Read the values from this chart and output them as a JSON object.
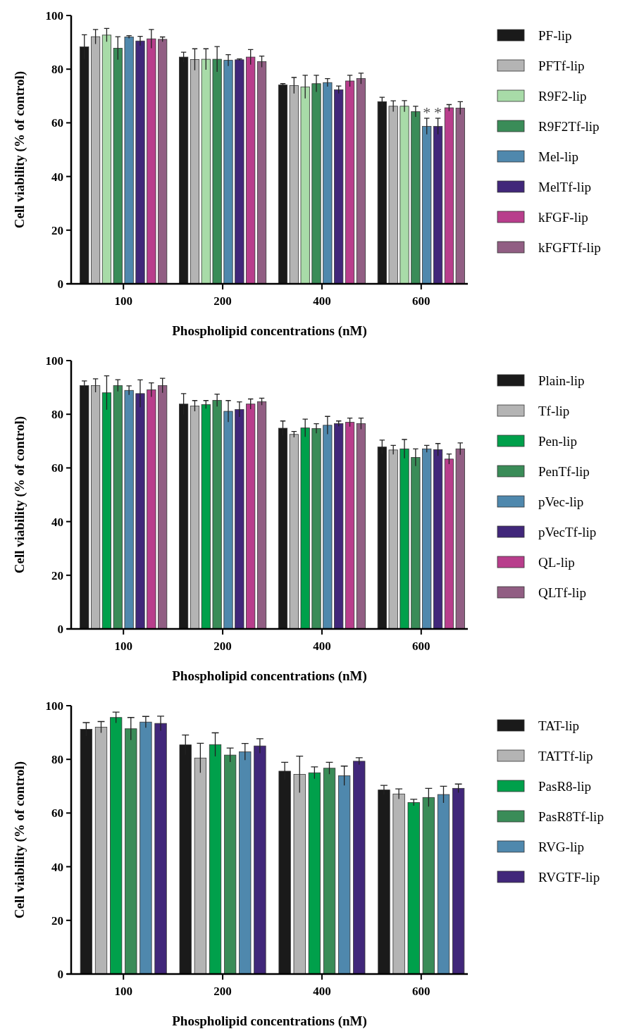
{
  "chart_data": [
    {
      "type": "bar",
      "xlabel": "Phospholipid concentrations (nM)",
      "ylabel": "Cell viability (% of control)",
      "categories": [
        "100",
        "200",
        "400",
        "600"
      ],
      "ylim": [
        0,
        100
      ],
      "yticks": [
        0,
        20,
        40,
        60,
        80,
        100
      ],
      "legend": "right",
      "grid": false,
      "series": [
        {
          "name": "PF-lip",
          "color": "#1a1a1a",
          "values": [
            88.3,
            84.5,
            74.1,
            67.9
          ],
          "errors": [
            4.5,
            1.8,
            0.5,
            1.6
          ]
        },
        {
          "name": "PFTf-lip",
          "color": "#b4b4b4",
          "values": [
            92.1,
            83.6,
            73.9,
            66.2
          ],
          "errors": [
            2.7,
            4,
            3,
            2
          ]
        },
        {
          "name": "R9F2-lip",
          "color": "#a8dba8",
          "values": [
            92.7,
            83.7,
            73.4,
            66.2
          ],
          "errors": [
            2.5,
            3.9,
            4.3,
            2.1
          ]
        },
        {
          "name": "R9F2Tf-lip",
          "color": "#3a8c58",
          "values": [
            87.8,
            83.7,
            74.6,
            64.2
          ],
          "errors": [
            4.3,
            4.7,
            3.1,
            2
          ]
        },
        {
          "name": "Mel-lip",
          "color": "#4f88ad",
          "values": [
            92,
            83.3,
            75,
            58.7
          ],
          "errors": [
            0.5,
            2.1,
            1.5,
            3
          ]
        },
        {
          "name": "MelTf-lip",
          "color": "#41277a",
          "values": [
            90.5,
            83.5,
            72.3,
            58.7
          ],
          "errors": [
            1.7,
            0.3,
            1.4,
            3
          ]
        },
        {
          "name": "kFGF-lip",
          "color": "#b83e8c",
          "values": [
            91.3,
            84.5,
            75.6,
            65.6
          ],
          "errors": [
            3.5,
            2.8,
            2.1,
            1.2
          ]
        },
        {
          "name": "kFGFTf-lip",
          "color": "#915e83",
          "values": [
            91.1,
            82.8,
            76.5,
            65.5
          ],
          "errors": [
            0.9,
            2.1,
            2,
            2.4
          ]
        }
      ],
      "annotations": [
        {
          "text": "*",
          "x": "600",
          "y": 62.5
        },
        {
          "text": "*",
          "x": "600",
          "y": 62.5
        }
      ]
    },
    {
      "type": "bar",
      "xlabel": "Phospholipid concentrations (nM)",
      "ylabel": "Cell viability (% of control)",
      "categories": [
        "100",
        "200",
        "400",
        "600"
      ],
      "ylim": [
        0,
        100
      ],
      "yticks": [
        0,
        20,
        40,
        60,
        80,
        100
      ],
      "legend": "right",
      "grid": false,
      "series": [
        {
          "name": "Plain-lip",
          "color": "#1a1a1a",
          "values": [
            90.7,
            83.8,
            74.8,
            67.8
          ],
          "errors": [
            1.7,
            3.9,
            2.7,
            2.6
          ]
        },
        {
          "name": "Tf-lip",
          "color": "#b4b4b4",
          "values": [
            90.7,
            83.1,
            72.5,
            66.7
          ],
          "errors": [
            2.5,
            2,
            1.1,
            1.7
          ]
        },
        {
          "name": "Pen-lip",
          "color": "#00a04b",
          "values": [
            88,
            83.6,
            74.9,
            67.1
          ],
          "errors": [
            6.3,
            1.5,
            3.3,
            3.5
          ]
        },
        {
          "name": "PenTf-lip",
          "color": "#3a8c58",
          "values": [
            90.7,
            85.2,
            74.7,
            63.9
          ],
          "errors": [
            2.2,
            2.3,
            1.8,
            3.2
          ]
        },
        {
          "name": "pVec-lip",
          "color": "#4f88ad",
          "values": [
            88.9,
            81.1,
            75.9,
            67.1
          ],
          "errors": [
            1.7,
            4,
            3.3,
            1.3
          ]
        },
        {
          "name": "pVecTf-lip",
          "color": "#41277a",
          "values": [
            87.7,
            81.8,
            76.5,
            66.8
          ],
          "errors": [
            5.1,
            2.8,
            1,
            2.3
          ]
        },
        {
          "name": "QL-lip",
          "color": "#b83e8c",
          "values": [
            89.1,
            83.8,
            77,
            63.3
          ],
          "errors": [
            2.6,
            1.9,
            1.6,
            1.9
          ]
        },
        {
          "name": "QLTf-lip",
          "color": "#915e83",
          "values": [
            90.7,
            84.7,
            76.5,
            67.1
          ],
          "errors": [
            2.7,
            1.3,
            2.1,
            2.2
          ]
        }
      ]
    },
    {
      "type": "bar",
      "xlabel": "Phospholipid concentrations (nM)",
      "ylabel": "Cell viability (% of control)",
      "categories": [
        "100",
        "200",
        "400",
        "600"
      ],
      "ylim": [
        0,
        100
      ],
      "yticks": [
        0,
        20,
        40,
        60,
        80,
        100
      ],
      "legend": "right",
      "grid": false,
      "series": [
        {
          "name": "TAT-lip",
          "color": "#1a1a1a",
          "values": [
            91.2,
            85.4,
            75.6,
            68.6
          ],
          "errors": [
            2.5,
            3.7,
            3.3,
            1.7
          ]
        },
        {
          "name": "TATTf-lip",
          "color": "#b4b4b4",
          "values": [
            92,
            80.5,
            74.4,
            67.1
          ],
          "errors": [
            2.1,
            5.5,
            6.8,
            1.9
          ]
        },
        {
          "name": "PasR8-lip",
          "color": "#00a04b",
          "values": [
            95.6,
            85.5,
            75,
            63.9
          ],
          "errors": [
            2,
            4.4,
            2.2,
            1.2
          ]
        },
        {
          "name": "PasR8Tf-lip",
          "color": "#3a8c58",
          "values": [
            91.4,
            81.6,
            76.7,
            65.8
          ],
          "errors": [
            4.2,
            2.6,
            2.2,
            3.4
          ]
        },
        {
          "name": "RVG-lip",
          "color": "#4f88ad",
          "values": [
            93.9,
            82.8,
            73.9,
            66.9
          ],
          "errors": [
            2.1,
            3.1,
            3.6,
            3.1
          ]
        },
        {
          "name": "RVGTF-lip",
          "color": "#41277a",
          "values": [
            93.4,
            85,
            79.3,
            69.2
          ],
          "errors": [
            2.7,
            2.7,
            1.3,
            1.6
          ]
        }
      ]
    }
  ]
}
